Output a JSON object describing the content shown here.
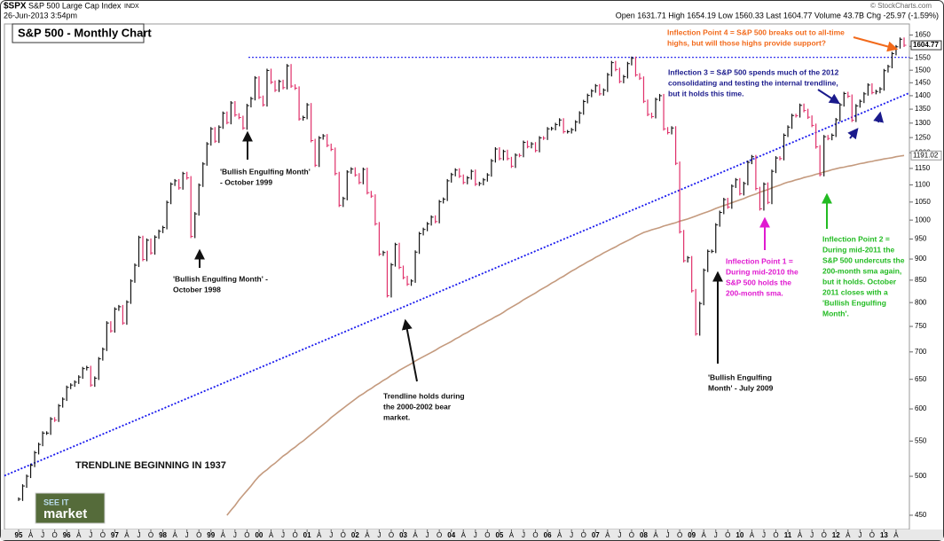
{
  "header": {
    "symbol": "$SPX",
    "name": "S&P 500 Large Cap Index",
    "exchange": "INDX",
    "date": "26-Jun-2013 3:54pm",
    "quote": "Open 1631.71  High 1654.19  Low 1560.33  Last 1604.77  Volume 43.7B  Chg -25.97 (-1.59%)",
    "credit": "© StockCharts.com"
  },
  "logo": {
    "top": "SEE IT",
    "bottom": "market"
  },
  "chart_data": {
    "type": "price-bar",
    "title": "S&P 500 - Monthly Chart",
    "log_scale": true,
    "ylim": [
      433,
      1700
    ],
    "yticks": [
      450,
      500,
      550,
      600,
      650,
      700,
      750,
      800,
      850,
      900,
      950,
      1000,
      1050,
      1100,
      1150,
      1200,
      1250,
      1300,
      1350,
      1400,
      1450,
      1500,
      1550,
      1600,
      1650
    ],
    "categories": [
      "95",
      null,
      null,
      "A",
      null,
      null,
      "J",
      null,
      null,
      "O",
      null,
      null,
      "96",
      null,
      null,
      "A",
      null,
      null,
      "J",
      null,
      null,
      "O",
      null,
      null,
      "97",
      null,
      null,
      "A",
      null,
      null,
      "J",
      null,
      null,
      "O",
      null,
      null,
      "98",
      null,
      null,
      "A",
      null,
      null,
      "J",
      null,
      null,
      "O",
      null,
      null,
      "99",
      null,
      null,
      "A",
      null,
      null,
      "J",
      null,
      null,
      "O",
      null,
      null,
      "00",
      null,
      null,
      "A",
      null,
      null,
      "J",
      null,
      null,
      "O",
      null,
      null,
      "01",
      null,
      null,
      "A",
      null,
      null,
      "J",
      null,
      null,
      "O",
      null,
      null,
      "02",
      null,
      null,
      "A",
      null,
      null,
      "J",
      null,
      null,
      "O",
      null,
      null,
      "03",
      null,
      null,
      "A",
      null,
      null,
      "J",
      null,
      null,
      "O",
      null,
      null,
      "04",
      null,
      null,
      "A",
      null,
      null,
      "J",
      null,
      null,
      "O",
      null,
      null,
      "05",
      null,
      null,
      "A",
      null,
      null,
      "J",
      null,
      null,
      "O",
      null,
      null,
      "06",
      null,
      null,
      "A",
      null,
      null,
      "J",
      null,
      null,
      "O",
      null,
      null,
      "07",
      null,
      null,
      "A",
      null,
      null,
      "J",
      null,
      null,
      "O",
      null,
      null,
      "08",
      null,
      null,
      "A",
      null,
      null,
      "J",
      null,
      null,
      "O",
      null,
      null,
      "09",
      null,
      null,
      "A",
      null,
      null,
      "J",
      null,
      null,
      "O",
      null,
      null,
      "10",
      null,
      null,
      "A",
      null,
      null,
      "J",
      null,
      null,
      "O",
      null,
      null,
      "11",
      null,
      null,
      "A",
      null,
      null,
      "J",
      null,
      null,
      "O",
      null,
      null,
      "12",
      null,
      null,
      "A",
      null,
      null,
      "J",
      null,
      null,
      "O",
      null,
      null,
      "13",
      null,
      null,
      "A",
      null,
      null
    ],
    "price": {
      "color": "#111111",
      "down_color": "#e0306a",
      "values": [
        470,
        487,
        500,
        515,
        533,
        545,
        562,
        562,
        584,
        582,
        605,
        616,
        636,
        640,
        645,
        654,
        669,
        671,
        640,
        652,
        687,
        705,
        757,
        741,
        786,
        791,
        757,
        801,
        848,
        885,
        954,
        899,
        947,
        915,
        955,
        970,
        980,
        1049,
        1102,
        1112,
        1091,
        1134,
        1121,
        957,
        1017,
        1099,
        1164,
        1229,
        1280,
        1238,
        1286,
        1335,
        1302,
        1373,
        1329,
        1320,
        1283,
        1363,
        1389,
        1469,
        1394,
        1366,
        1499,
        1452,
        1421,
        1455,
        1431,
        1518,
        1437,
        1429,
        1315,
        1320,
        1366,
        1240,
        1160,
        1249,
        1256,
        1224,
        1211,
        1134,
        1041,
        1060,
        1139,
        1148,
        1130,
        1107,
        1147,
        1077,
        1067,
        990,
        912,
        916,
        815,
        886,
        936,
        880,
        856,
        841,
        848,
        917,
        964,
        975,
        990,
        1008,
        996,
        1051,
        1058,
        1112,
        1131,
        1145,
        1126,
        1107,
        1121,
        1141,
        1102,
        1104,
        1115,
        1130,
        1174,
        1212,
        1181,
        1204,
        1181,
        1157,
        1192,
        1191,
        1234,
        1220,
        1229,
        1207,
        1249,
        1248,
        1280,
        1281,
        1295,
        1311,
        1270,
        1270,
        1277,
        1304,
        1336,
        1378,
        1401,
        1418,
        1438,
        1407,
        1421,
        1482,
        1531,
        1503,
        1455,
        1474,
        1527,
        1549,
        1481,
        1468,
        1379,
        1331,
        1323,
        1386,
        1400,
        1280,
        1267,
        1283,
        1166,
        969,
        896,
        903,
        826,
        735,
        798,
        873,
        919,
        919,
        987,
        1021,
        1057,
        1036,
        1096,
        1115,
        1074,
        1104,
        1169,
        1187,
        1089,
        1031,
        1102,
        1049,
        1141,
        1183,
        1181,
        1258,
        1286,
        1327,
        1326,
        1364,
        1345,
        1321,
        1292,
        1219,
        1131,
        1253,
        1247,
        1258,
        1312,
        1366,
        1408,
        1398,
        1310,
        1362,
        1379,
        1407,
        1441,
        1412,
        1416,
        1426,
        1498,
        1515,
        1569,
        1598,
        1631,
        1604.77
      ]
    },
    "sma": {
      "color": "#c49a7e",
      "values": [
        null,
        null,
        null,
        null,
        null,
        null,
        null,
        null,
        null,
        null,
        null,
        null,
        null,
        null,
        null,
        null,
        null,
        null,
        null,
        null,
        null,
        null,
        null,
        null,
        null,
        null,
        null,
        null,
        null,
        null,
        null,
        null,
        null,
        null,
        null,
        null,
        null,
        null,
        null,
        null,
        null,
        null,
        null,
        null,
        null,
        null,
        null,
        null,
        null,
        null,
        null,
        null,
        450,
        456,
        462,
        469,
        475,
        481,
        487,
        494,
        500,
        505,
        509,
        514,
        518,
        523,
        528,
        532,
        537,
        541,
        546,
        550,
        555,
        560,
        565,
        570,
        575,
        580,
        586,
        591,
        596,
        601,
        606,
        611,
        616,
        621,
        625,
        630,
        634,
        639,
        643,
        648,
        652,
        657,
        661,
        666,
        670,
        674,
        678,
        683,
        687,
        691,
        695,
        699,
        703,
        708,
        712,
        716,
        720,
        725,
        729,
        734,
        738,
        743,
        747,
        752,
        756,
        761,
        765,
        770,
        774,
        779,
        785,
        790,
        795,
        800,
        806,
        811,
        816,
        821,
        827,
        832,
        837,
        843,
        848,
        854,
        859,
        865,
        871,
        876,
        882,
        887,
        893,
        898,
        904,
        909,
        915,
        920,
        925,
        930,
        936,
        941,
        946,
        951,
        957,
        962,
        967,
        970,
        974,
        977,
        980,
        984,
        987,
        990,
        993,
        997,
        1000,
        1003,
        1007,
        1011,
        1015,
        1019,
        1023,
        1027,
        1032,
        1036,
        1040,
        1044,
        1048,
        1052,
        1056,
        1060,
        1065,
        1069,
        1073,
        1078,
        1082,
        1086,
        1091,
        1095,
        1099,
        1104,
        1108,
        1111,
        1115,
        1118,
        1122,
        1125,
        1128,
        1132,
        1135,
        1139,
        1142,
        1146,
        1149,
        1152,
        1154,
        1157,
        1159,
        1162,
        1165,
        1167,
        1170,
        1172,
        1175,
        1177,
        1180,
        1182,
        1184,
        1187,
        1189,
        1191.02
      ]
    },
    "trendline": {
      "color": "#1a1aee",
      "values": [
        509,
        1402
      ]
    },
    "resistance": {
      "color": "#1a1aee",
      "value": 1553
    },
    "annotations": [
      {
        "color": "#111111",
        "lines": [
          "'Bullish Engulfing Month'",
          "- October 1999"
        ]
      },
      {
        "color": "#111111",
        "lines": [
          "'Bullish Engulfing Month' -",
          "October 1998"
        ]
      },
      {
        "color": "#111111",
        "lines": [
          "Trendline holds during",
          "the 2000-2002 bear",
          "market."
        ]
      },
      {
        "color": "#111111",
        "lines": [
          "'Bullish Engulfing",
          "Month' - July 2009"
        ]
      },
      {
        "color": "#e01ad0",
        "lines": [
          "Inflection Point 1 =",
          "During mid-2010 the",
          "S&P 500 holds the",
          "200-month sma."
        ]
      },
      {
        "color": "#22bb22",
        "lines": [
          "Inflection Point 2 =",
          "During mid-2011 the",
          "S&P 500 undercuts the",
          "200-month sma again,",
          "but it holds. October",
          "2011 closes with a",
          "'Bullish Engulfing",
          "Month'."
        ]
      },
      {
        "color": "#1a1a8c",
        "lines": [
          "Inflection 3 = S&P 500 spends much of the 2012",
          "consolidating and testing the internal trendline,",
          "but it holds this time."
        ]
      },
      {
        "color": "#f26a1b",
        "lines": [
          "Inflection Point 4 = S&P 500 breaks out to all-time",
          "highs, but will those highs provide support?"
        ]
      },
      {
        "color": "#111111",
        "lines": [
          "TRENDLINE BEGINNING IN 1937"
        ]
      }
    ]
  }
}
